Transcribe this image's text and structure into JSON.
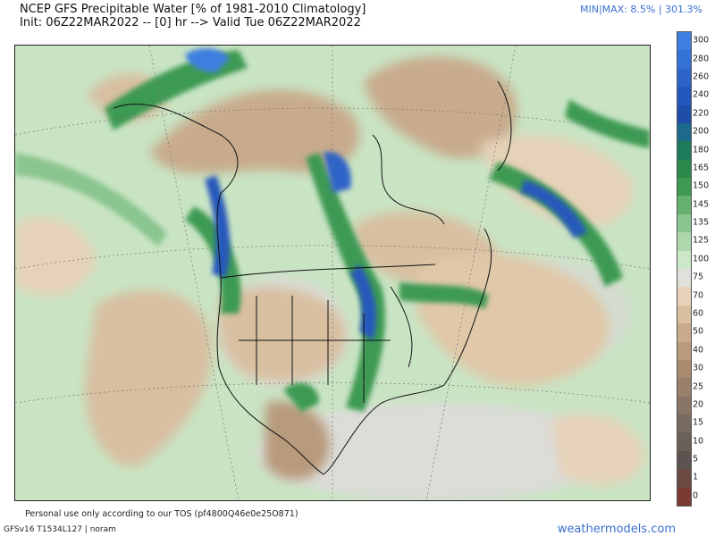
{
  "header": {
    "title_line1": "NCEP GFS Precipitable Water [% of 1981-2010 Climatology]",
    "title_line2": "Init: 06Z22MAR2022 -- [0] hr --> Valid Tue 06Z22MAR2022",
    "min_label": "MIN",
    "separator": "|",
    "max_label": "MAX: 8.5% | 301.3%"
  },
  "colorbar": {
    "segments": [
      {
        "label": "300",
        "color": "#3d7fe0"
      },
      {
        "label": "280",
        "color": "#3572d8"
      },
      {
        "label": "260",
        "color": "#2d64c8"
      },
      {
        "label": "240",
        "color": "#2558bc"
      },
      {
        "label": "220",
        "color": "#1f4ea8"
      },
      {
        "label": "200",
        "color": "#1d6a8a"
      },
      {
        "label": "180",
        "color": "#1e7c5c"
      },
      {
        "label": "165",
        "color": "#2a8a4a"
      },
      {
        "label": "150",
        "color": "#3e9a52"
      },
      {
        "label": "145",
        "color": "#66b070"
      },
      {
        "label": "135",
        "color": "#8ac58f"
      },
      {
        "label": "125",
        "color": "#aed7ae"
      },
      {
        "label": "100",
        "color": "#cde8c8"
      },
      {
        "label": "75",
        "color": "#e0e0dc"
      },
      {
        "label": "70",
        "color": "#e6d2b8"
      },
      {
        "label": "60",
        "color": "#d8bfa0"
      },
      {
        "label": "50",
        "color": "#c8ab8c"
      },
      {
        "label": "40",
        "color": "#b89a7c"
      },
      {
        "label": "30",
        "color": "#a88a6e"
      },
      {
        "label": "25",
        "color": "#98806a"
      },
      {
        "label": "20",
        "color": "#887464"
      },
      {
        "label": "15",
        "color": "#786a5e"
      },
      {
        "label": "10",
        "color": "#6a6058"
      },
      {
        "label": "5",
        "color": "#5c5450"
      },
      {
        "label": "1",
        "color": "#6a4a40"
      },
      {
        "label": "0",
        "color": "#7a3a30"
      }
    ]
  },
  "footer": {
    "tos": "Personal use only according to our TOS (pf4800Q46e0e25O871)",
    "model": "GFSv16 T1534L127 | noram",
    "site": "weathermodels.com"
  }
}
